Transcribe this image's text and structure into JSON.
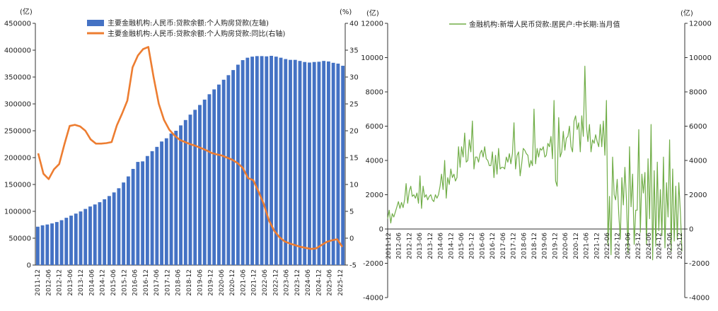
{
  "chart_data": [
    {
      "type": "bar+line",
      "title": "",
      "left_unit": "(亿)",
      "right_unit": "(%)",
      "left_ylim": [
        0,
        450000
      ],
      "left_ticks": [
        0,
        50000,
        100000,
        150000,
        200000,
        250000,
        300000,
        350000,
        400000,
        450000
      ],
      "right_ylim": [
        -5,
        40
      ],
      "right_ticks": [
        -5,
        0,
        5,
        10,
        15,
        20,
        25,
        30,
        35,
        40
      ],
      "x_labels": [
        "2011-12",
        "2012-06",
        "2012-12",
        "2013-06",
        "2013-12",
        "2014-06",
        "2014-12",
        "2015-06",
        "2015-12",
        "2016-06",
        "2016-12",
        "2017-06",
        "2017-12",
        "2018-06",
        "2018-12",
        "2019-06",
        "2019-12",
        "2020-06",
        "2020-12",
        "2021-06",
        "2021-12",
        "2022-06",
        "2022-12",
        "2023-06",
        "2023-12",
        "2024-06",
        "2024-12",
        "2025-06",
        "2025-12"
      ],
      "series": [
        {
          "name": "主要金融机构:人民币:贷款余额:个人购房贷款(左轴)",
          "kind": "bar",
          "axis": "left",
          "color": "#4472c4",
          "values": [
            71400,
            74000,
            75500,
            77500,
            80100,
            83500,
            88000,
            92000,
            95800,
            99800,
            104500,
            109000,
            112800,
            117000,
            122500,
            128500,
            135200,
            143000,
            153700,
            165000,
            179000,
            192000,
            193000,
            203000,
            212000,
            220000,
            230000,
            236000,
            245000,
            250000,
            260000,
            270000,
            280000,
            289000,
            298000,
            308000,
            318000,
            327000,
            336000,
            345000,
            353500,
            363000,
            373000,
            381500,
            386000,
            388000,
            389000,
            389000,
            388500,
            389500,
            388000,
            386000,
            383500,
            382000,
            382000,
            380000,
            378000,
            377000,
            378000,
            378500,
            380000,
            379000,
            376500,
            375000,
            371000
          ]
        },
        {
          "name": "主要金融机构:人民币:贷款余额:个人购房贷款:同比(右轴)",
          "kind": "line",
          "axis": "right",
          "color": "#ed7d31",
          "values": [
            15.8,
            12.0,
            11.0,
            12.8,
            13.8,
            17.5,
            20.9,
            21.1,
            20.8,
            20.0,
            18.4,
            17.6,
            17.6,
            17.7,
            17.9,
            21.0,
            23.2,
            25.6,
            31.8,
            34.0,
            35.2,
            35.6,
            30.0,
            25.0,
            22.0,
            20.2,
            19.1,
            18.3,
            17.9,
            17.5,
            17.2,
            16.8,
            16.4,
            15.9,
            15.6,
            15.4,
            15.0,
            14.6,
            14.0,
            13.1,
            11.2,
            10.8,
            8.7,
            6.4,
            3.3,
            1.4,
            0.2,
            -0.6,
            -1.0,
            -1.3,
            -1.6,
            -1.8,
            -2.0,
            -1.9,
            -1.3,
            -0.7,
            -0.4,
            -0.2,
            -1.6
          ]
        }
      ]
    },
    {
      "type": "line",
      "title": "",
      "left_unit": "(亿)",
      "right_unit": "(亿)",
      "ylim": [
        -4000,
        12000
      ],
      "left_ticks": [
        -4000,
        -2000,
        0,
        2000,
        4000,
        6000,
        8000,
        10000,
        12000
      ],
      "right_ticks": [
        -4000,
        -2000,
        0,
        2000,
        4000,
        6000,
        8000,
        10000,
        12000
      ],
      "x_labels": [
        "2011-12",
        "2012-06",
        "2012-12",
        "2013-06",
        "2013-12",
        "2014-06",
        "2014-12",
        "2015-06",
        "2015-12",
        "2016-06",
        "2016-12",
        "2017-06",
        "2017-12",
        "2018-06",
        "2018-12",
        "2019-06",
        "2019-12",
        "2020-06",
        "2020-12",
        "2021-06",
        "2021-12",
        "2022-06",
        "2022-12",
        "2023-06",
        "2023-12",
        "2024-06",
        "2024-12",
        "2025-06",
        "2025-12"
      ],
      "series": [
        {
          "name": "金融机构:新增人民币贷款:居民户:中长期:当月值",
          "color": "#70ad47",
          "values": [
            600,
            1100,
            350,
            900,
            700,
            1000,
            1300,
            1600,
            1200,
            1550,
            1250,
            1700,
            2650,
            1500,
            2200,
            2500,
            1900,
            2000,
            1800,
            2100,
            1500,
            3100,
            1200,
            2500,
            1850,
            2000,
            1700,
            1900,
            2000,
            1700,
            1600,
            2000,
            1800,
            2000,
            2500,
            3200,
            2300,
            4000,
            1800,
            3000,
            2600,
            3500,
            3000,
            3200,
            2800,
            3000,
            4800,
            3600,
            4800,
            4200,
            5600,
            3900,
            4000,
            5200,
            4500,
            6300,
            3500,
            4200,
            4200,
            3900,
            4400,
            4600,
            4200,
            4800,
            4100,
            4000,
            3700,
            3700,
            4500,
            3000,
            4300,
            3200,
            4700,
            3500,
            3600,
            3600,
            3500,
            4200,
            3900,
            4400,
            3800,
            4400,
            6200,
            3500,
            4300,
            4500,
            3100,
            3800,
            4700,
            4600,
            4400,
            4300,
            3600,
            4000,
            3700,
            7000,
            3800,
            4700,
            4200,
            4700,
            4600,
            4800,
            4200,
            4300,
            5000,
            4800,
            5400,
            4100,
            7500,
            2800,
            2500,
            6500,
            4200,
            4500,
            5700,
            4600,
            5300,
            5400,
            6000,
            4800,
            4500,
            6300,
            6600,
            5800,
            6200,
            4500,
            6600,
            5400,
            9500,
            6000,
            5100,
            6100,
            4500,
            5200,
            5000,
            5500,
            5100,
            4800,
            6100,
            4800,
            6300,
            4300,
            7500,
            -900,
            1900,
            -1500,
            4200,
            2000,
            1700,
            2900,
            900,
            -600,
            3000,
            1400,
            3600,
            1700,
            -1400,
            4800,
            1300,
            3200,
            -900,
            1100,
            1100,
            5800,
            -200,
            3200,
            2100,
            3300,
            -900,
            4100,
            600,
            6100,
            -1800,
            3400,
            -1000,
            3900,
            -100,
            2300,
            -400,
            4200,
            -1100,
            2700,
            700,
            5200,
            -1300,
            3500,
            -700,
            2500,
            -600,
            2700,
            1000,
            -1300
          ]
        }
      ]
    }
  ]
}
